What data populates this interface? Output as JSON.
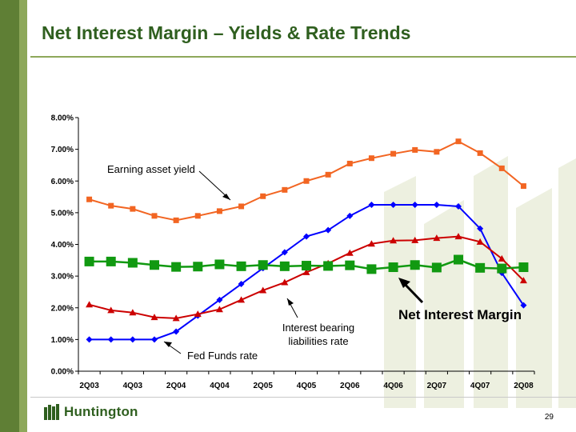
{
  "slide": {
    "title": "Net Interest Margin – Yields & Rate Trends",
    "page_number": "29",
    "logo_text": "Huntington",
    "brand_color": "#2f5f1f"
  },
  "chart_data": {
    "type": "line",
    "title": "",
    "xlabel": "",
    "ylabel": "",
    "ylim": [
      0,
      8
    ],
    "y_ticks": [
      "0.00%",
      "1.00%",
      "2.00%",
      "3.00%",
      "4.00%",
      "5.00%",
      "6.00%",
      "7.00%",
      "8.00%"
    ],
    "categories": [
      "2Q03",
      "3Q03",
      "4Q03",
      "1Q04",
      "2Q04",
      "3Q04",
      "4Q04",
      "1Q05",
      "2Q05",
      "3Q05",
      "4Q05",
      "1Q06",
      "2Q06",
      "3Q06",
      "4Q06",
      "1Q07",
      "2Q07",
      "3Q07",
      "4Q07",
      "1Q08",
      "2Q08"
    ],
    "x_tick_labels": [
      "2Q03",
      "4Q03",
      "2Q04",
      "4Q04",
      "2Q05",
      "4Q05",
      "2Q06",
      "4Q06",
      "2Q07",
      "4Q07",
      "2Q08"
    ],
    "series": [
      {
        "name": "Earning asset yield",
        "color": "#f26522",
        "marker": "square",
        "values": [
          5.42,
          5.22,
          5.12,
          4.9,
          4.76,
          4.9,
          5.05,
          5.2,
          5.52,
          5.72,
          6.0,
          6.2,
          6.55,
          6.72,
          6.86,
          6.98,
          6.92,
          7.25,
          6.88,
          6.4,
          5.84
        ]
      },
      {
        "name": "Fed Funds rate",
        "color": "#0000ff",
        "marker": "diamond",
        "values": [
          1.0,
          1.0,
          1.0,
          1.0,
          1.25,
          1.75,
          2.25,
          2.75,
          3.25,
          3.75,
          4.25,
          4.45,
          4.9,
          5.25,
          5.25,
          5.25,
          5.25,
          5.2,
          4.5,
          3.1,
          2.08
        ]
      },
      {
        "name": "Interest bearing liabilities rate",
        "color": "#cc0000",
        "marker": "triangle",
        "values": [
          2.1,
          1.92,
          1.85,
          1.7,
          1.67,
          1.8,
          1.95,
          2.25,
          2.55,
          2.8,
          3.12,
          3.4,
          3.73,
          4.02,
          4.12,
          4.13,
          4.2,
          4.25,
          4.08,
          3.55,
          2.86
        ]
      },
      {
        "name": "Net Interest Margin",
        "color": "#119911",
        "marker": "square-large",
        "values": [
          3.46,
          3.46,
          3.42,
          3.35,
          3.29,
          3.3,
          3.37,
          3.31,
          3.35,
          3.31,
          3.33,
          3.32,
          3.34,
          3.22,
          3.28,
          3.35,
          3.27,
          3.52,
          3.26,
          3.24,
          3.28
        ]
      }
    ],
    "annotations": {
      "earning_asset_yield": "Earning asset yield",
      "fed_funds_rate": "Fed Funds rate",
      "liabilities_rate_line1": "Interest bearing",
      "liabilities_rate_line2": "liabilities rate",
      "net_interest_margin": "Net Interest Margin"
    }
  }
}
